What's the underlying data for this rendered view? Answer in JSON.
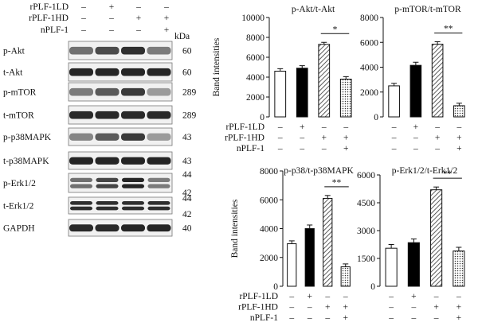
{
  "blot_panel": {
    "treatment_rows": [
      {
        "label": "rPLF-1LD",
        "signs": [
          "–",
          "+",
          "–",
          "–"
        ]
      },
      {
        "label": "rPLF-1HD",
        "signs": [
          "–",
          "–",
          "+",
          "+"
        ]
      },
      {
        "label": "nPLF-1",
        "signs": [
          "–",
          "–",
          "–",
          "+"
        ]
      }
    ],
    "kda_header": "kDa",
    "bands": [
      {
        "label": "p-Akt",
        "kda": "60",
        "intensities": [
          0.55,
          0.72,
          0.85,
          0.5
        ]
      },
      {
        "label": "t-Akt",
        "kda": "60",
        "intensities": [
          0.9,
          0.9,
          0.9,
          0.9
        ]
      },
      {
        "label": "p-mTOR",
        "kda": "289",
        "intensities": [
          0.5,
          0.65,
          0.8,
          0.35
        ]
      },
      {
        "label": "t-mTOR",
        "kda": "289",
        "intensities": [
          0.88,
          0.88,
          0.88,
          0.88
        ]
      },
      {
        "label": "p-p38MAPK",
        "kda": "43",
        "intensities": [
          0.45,
          0.65,
          0.8,
          0.35
        ]
      },
      {
        "label": "t-p38MAPK",
        "kda": "43",
        "intensities": [
          0.9,
          0.9,
          0.9,
          0.9
        ]
      },
      {
        "label": "p-Erk1/2",
        "kda": "44",
        "kda2": "42",
        "intensities": [
          0.55,
          0.75,
          0.9,
          0.5
        ],
        "double": true
      },
      {
        "label": "t-Erk1/2",
        "kda": "44",
        "kda2": "42",
        "intensities": [
          0.85,
          0.85,
          0.85,
          0.85
        ],
        "double": true
      },
      {
        "label": "GAPDH",
        "kda": "40",
        "intensities": [
          0.88,
          0.88,
          0.9,
          0.9
        ]
      }
    ]
  },
  "shared_ylabel": "Band intensities",
  "treatment_labels": [
    "rPLF-1LD",
    "rPLF-1HD",
    "nPLF-1"
  ],
  "treatment_signs": [
    [
      "–",
      "+",
      "–",
      "–"
    ],
    [
      "–",
      "–",
      "+",
      "+"
    ],
    [
      "–",
      "–",
      "–",
      "+"
    ]
  ],
  "bar_fills": [
    "open",
    "solid",
    "hatched",
    "dotted"
  ],
  "chart_data": [
    {
      "type": "bar",
      "title": "p-Akt/t-Akt",
      "ylabel": "Band intensities",
      "ylim": [
        0,
        10000
      ],
      "yticks": [
        0,
        2000,
        4000,
        6000,
        8000,
        10000
      ],
      "values": [
        4600,
        4900,
        7300,
        3800
      ],
      "errors": [
        250,
        250,
        200,
        250
      ],
      "significance": {
        "from": 2,
        "to": 3,
        "label": "*"
      },
      "show_treatment_labels": true
    },
    {
      "type": "bar",
      "title": "p-mTOR/t-mTOR",
      "ylim": [
        0,
        8000
      ],
      "yticks": [
        0,
        2000,
        4000,
        6000,
        8000
      ],
      "values": [
        2500,
        4150,
        5850,
        900
      ],
      "errors": [
        200,
        250,
        200,
        200
      ],
      "significance": {
        "from": 2,
        "to": 3,
        "label": "**"
      },
      "show_treatment_labels": false
    },
    {
      "type": "bar",
      "title": "p-p38/t-p38MAPK",
      "ylabel": "Band intensities",
      "ylim": [
        0,
        8000
      ],
      "yticks": [
        0,
        2000,
        4000,
        6000,
        8000
      ],
      "values": [
        2950,
        4000,
        6100,
        1350
      ],
      "errors": [
        200,
        250,
        200,
        200
      ],
      "significance": {
        "from": 2,
        "to": 3,
        "label": "**"
      },
      "show_treatment_labels": true
    },
    {
      "type": "bar",
      "title": "p-Erk1/2/t-Erk1/2",
      "ylim": [
        0,
        6000
      ],
      "yticks": [
        0,
        1500,
        3000,
        4500,
        6000
      ],
      "values": [
        2050,
        2350,
        5200,
        1900
      ],
      "errors": [
        200,
        200,
        150,
        200
      ],
      "significance": {
        "from": 2,
        "to": 3,
        "label": "**"
      },
      "show_treatment_labels": false
    }
  ]
}
